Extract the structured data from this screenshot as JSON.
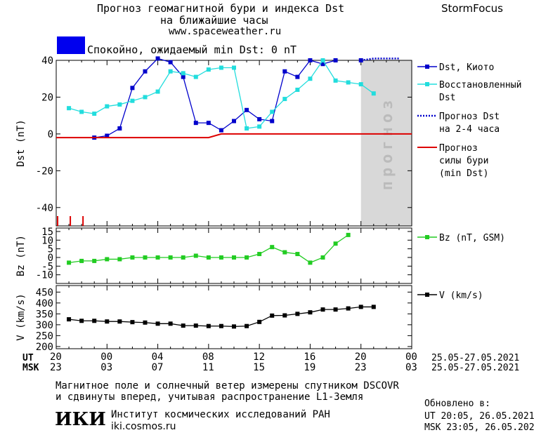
{
  "header": {
    "title_line1": "Прогноз геомагнитной бури и индекса Dst",
    "title_line2": "на ближайшие часы",
    "url": "www.spaceweather.ru",
    "brand": "StormFocus"
  },
  "status": {
    "text": "Спокойно, ожидаемый min Dst: 0 nT",
    "color": "#0000ee"
  },
  "forecast_band_label": "прогноз",
  "chart_data": [
    {
      "type": "line",
      "ylabel": "Dst (nT)",
      "ylim": [
        -50,
        40
      ],
      "yticks": [
        40,
        20,
        0,
        -20,
        -40
      ],
      "x_range_hours": [
        0,
        28
      ],
      "x_tick_hours": [
        0,
        4,
        8,
        12,
        16,
        20,
        24,
        28
      ],
      "forecast_region_hours": [
        24,
        28
      ],
      "grid": false,
      "legend_position": "right",
      "series": [
        {
          "name": "Dst, Киото",
          "color": "#0000cc",
          "marker": "square",
          "x": [
            3,
            4,
            5,
            6,
            7,
            8,
            9,
            10,
            11,
            12,
            13,
            14,
            15,
            16,
            17,
            18,
            19,
            20,
            21,
            22,
            23,
            24
          ],
          "y": [
            -2,
            -1,
            3,
            25,
            34,
            41,
            39,
            31,
            6,
            6,
            2,
            7,
            13,
            8,
            7,
            34,
            31,
            40,
            38,
            40,
            null,
            40
          ]
        },
        {
          "name": "Восстановленный Dst",
          "color": "#22dddd",
          "marker": "square",
          "x": [
            1,
            2,
            3,
            4,
            5,
            6,
            7,
            8,
            9,
            10,
            11,
            12,
            13,
            14,
            15,
            16,
            17,
            18,
            19,
            20,
            21,
            22,
            23,
            24,
            25
          ],
          "y": [
            14,
            12,
            11,
            15,
            16,
            18,
            20,
            23,
            34,
            33,
            31,
            35,
            36,
            36,
            3,
            4,
            12,
            19,
            24,
            30,
            40,
            29,
            28,
            27,
            22
          ]
        },
        {
          "name": "Прогноз Dst на 2-4 часа",
          "color": "#0000cc",
          "style": "dotted",
          "x": [
            24,
            25,
            26,
            27
          ],
          "y": [
            40,
            41,
            41,
            41
          ]
        },
        {
          "name": "Прогноз силы бури (min Dst)",
          "color": "#dd0000",
          "x": [
            0,
            12,
            13,
            28
          ],
          "y": [
            -2,
            -2,
            0,
            0
          ]
        }
      ],
      "storm_ticks_hours": [
        0,
        1,
        2
      ]
    },
    {
      "type": "line",
      "ylabel": "Bz (nT)",
      "ylim": [
        -15,
        17
      ],
      "yticks": [
        15,
        10,
        5,
        0,
        -5,
        -10
      ],
      "series": [
        {
          "name": "Bz (nT, GSM)",
          "color": "#22cc22",
          "marker": "square",
          "x": [
            1,
            2,
            3,
            4,
            5,
            6,
            7,
            8,
            9,
            10,
            11,
            12,
            13,
            14,
            15,
            16,
            17,
            18,
            19,
            20,
            21,
            22,
            23,
            24,
            25
          ],
          "y": [
            -3,
            -2,
            -2,
            -1,
            -1,
            0,
            0,
            0,
            0,
            0,
            1,
            0,
            0,
            0,
            0,
            2,
            6,
            3,
            2,
            -3,
            0,
            8,
            13,
            null,
            null
          ]
        }
      ]
    },
    {
      "type": "line",
      "ylabel": "V (km/s)",
      "ylim": [
        190,
        480
      ],
      "yticks": [
        450,
        400,
        350,
        300,
        250,
        200
      ],
      "series": [
        {
          "name": "V (km/s)",
          "color": "#000000",
          "marker": "square",
          "x": [
            1,
            2,
            3,
            4,
            5,
            6,
            7,
            8,
            9,
            10,
            11,
            12,
            13,
            14,
            15,
            16,
            17,
            18,
            19,
            20,
            21,
            22,
            23,
            24,
            25
          ],
          "y": [
            325,
            318,
            318,
            315,
            315,
            312,
            310,
            305,
            305,
            296,
            296,
            294,
            294,
            292,
            294,
            313,
            342,
            343,
            350,
            357,
            370,
            370,
            375,
            382,
            382
          ]
        }
      ]
    }
  ],
  "time_axis": {
    "ut_label": "UT",
    "msk_label": "MSK",
    "ut_ticks": [
      "20",
      "00",
      "04",
      "08",
      "12",
      "16",
      "20",
      "00"
    ],
    "msk_ticks": [
      "23",
      "03",
      "07",
      "11",
      "15",
      "19",
      "23",
      "03"
    ],
    "ut_range": "25.05-27.05.2021",
    "msk_range": "25.05-27.05.2021"
  },
  "footer": {
    "note_line1": "Магнитное поле и солнечный ветер измерены спутником DSCOVR",
    "note_line2": "и сдвинуты вперед, учитывая распространение L1-Земля",
    "logo_text": "ИКИ",
    "institute": "Институт космических исследований РАН",
    "institute_url": "iki.cosmos.ru",
    "updated_label": "Обновлено в:",
    "updated_ut": "UT  20:05, 26.05.2021",
    "updated_msk": "MSK 23:05, 26.05.2021"
  }
}
